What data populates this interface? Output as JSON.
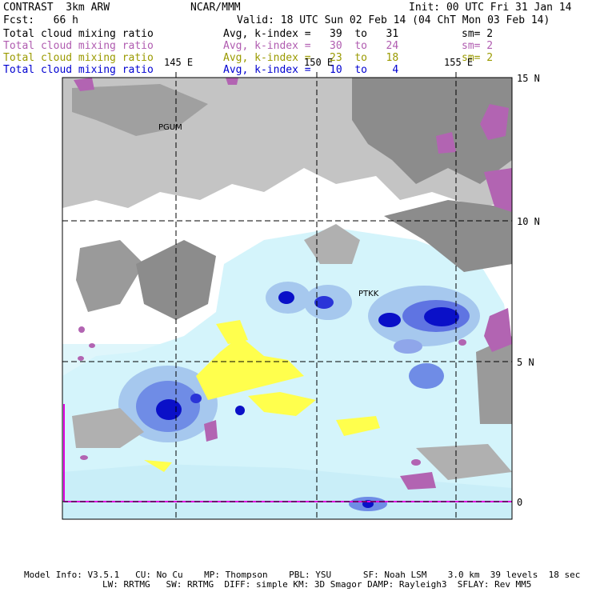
{
  "header": {
    "model": "CONTRAST  3km ARW",
    "center": "NCAR/MMM",
    "init": "Init: 00 UTC Fri 31 Jan 14",
    "fcst": "Fcst:   66 h",
    "valid": "Valid: 18 UTC Sun 02 Feb 14 (04 ChT Mon 03 Feb 14)"
  },
  "fields": [
    {
      "name": "Total cloud mixing ratio",
      "stat": "Avg, k-index =   39  to   31",
      "sm": "sm= 2",
      "color": "#000000"
    },
    {
      "name": "Total cloud mixing ratio",
      "stat": "Avg, k-index =   30  to   24",
      "sm": "sm= 2",
      "color": "#b05cb0"
    },
    {
      "name": "Total cloud mixing ratio",
      "stat": "Avg, k-index =   23  to   18",
      "sm": "sm= 2",
      "color": "#9a9a00"
    },
    {
      "name": "Total cloud mixing ratio",
      "stat": "Avg, k-index =   10  to    4",
      "sm": "",
      "color": "#0000d0"
    }
  ],
  "map": {
    "lon_labels": [
      "145 E",
      "150 E",
      "155 E"
    ],
    "lat_labels": [
      "15 N",
      "10 N",
      "5 N",
      "0"
    ],
    "stations": [
      "PGUM",
      "PTKK"
    ],
    "colors": {
      "grey_cloud": "#8c8c8c",
      "light_grey_cloud": "#c4c4c4",
      "purple_cloud": "#b264b2",
      "yellow_cloud": "#ffff4d",
      "light_blue_cloud": "#d4f4fb",
      "blue_cloud": "#3340e0",
      "dark_blue_cloud": "#0a10c8",
      "equator_line": "#e000e0"
    }
  },
  "footer": {
    "line1": "Model Info: V3.5.1   CU: No Cu    MP: Thompson    PBL: YSU      SF: Noah LSM    3.0 km  39 levels  18 sec",
    "line2": "LW: RRTMG   SW: RRTMG  DIFF: simple KM: 3D Smagor DAMP: Rayleigh3  SFLAY: Rev MM5"
  }
}
